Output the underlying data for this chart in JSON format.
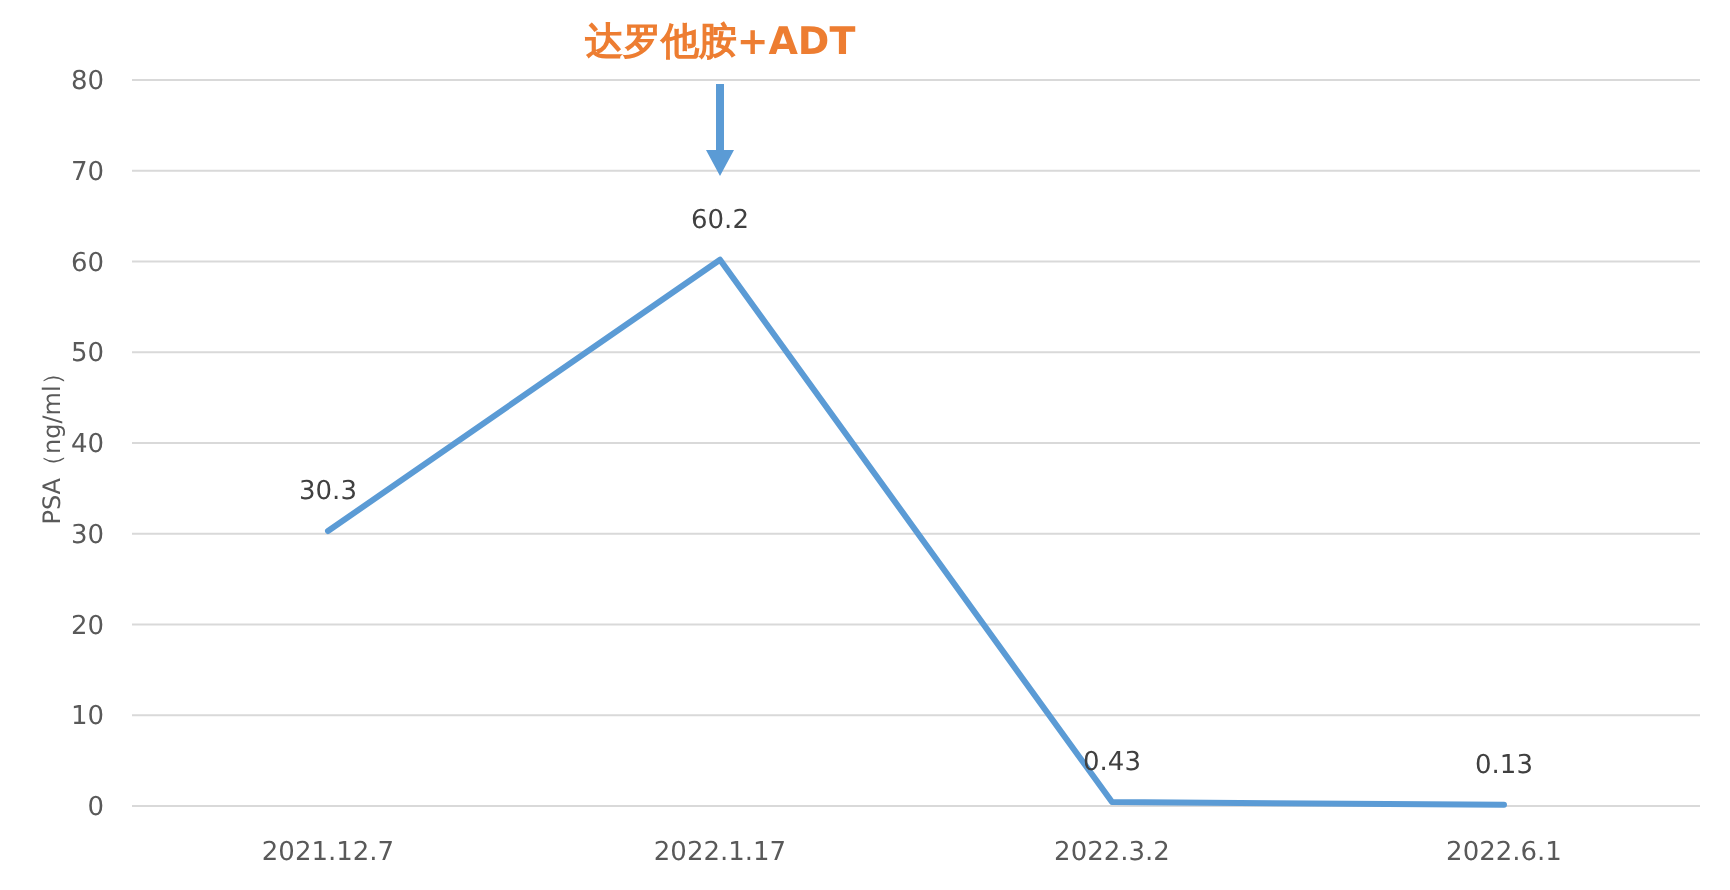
{
  "chart_data": {
    "type": "line",
    "ylabel": "PSA（ng/ml）",
    "categories": [
      "2021.12.7",
      "2022.1.17",
      "2022.3.2",
      "2022.6.1"
    ],
    "series": [
      {
        "color": "#5b9bd5",
        "values": [
          30.3,
          60.2,
          0.43,
          0.13
        ]
      }
    ],
    "ylim": [
      0,
      80
    ],
    "yticks": [
      0,
      10,
      20,
      30,
      40,
      50,
      60,
      70,
      80
    ],
    "grid": "y",
    "data_labels": true,
    "annotations": [
      "达罗他胺+ADT"
    ]
  }
}
